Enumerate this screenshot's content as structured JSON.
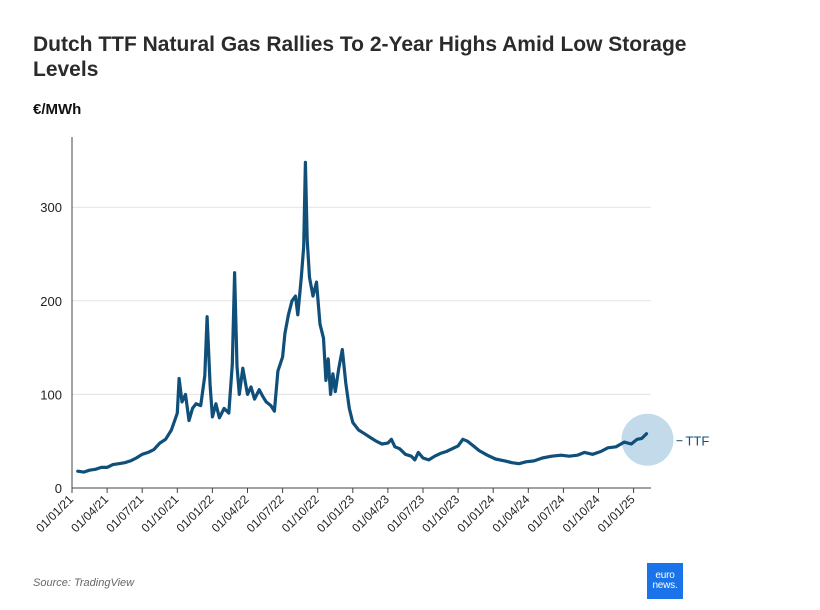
{
  "header": {
    "title": "Dutch TTF Natural Gas Rallies To 2-Year Highs Amid Low Storage Levels",
    "unit_label": "€/MWh"
  },
  "footer": {
    "source": "Source: TradingView",
    "logo_line1": "euro",
    "logo_line2": "news."
  },
  "colors": {
    "line": "#0f4f79",
    "highlight": "#b7d3e6",
    "grid": "#e3e3e3",
    "axis": "#444444",
    "logo": "#1a73e8"
  },
  "chart_data": {
    "type": "line",
    "title": "Dutch TTF Natural Gas Rallies To 2-Year Highs Amid Low Storage Levels",
    "ylabel": "€/MWh",
    "xlabel": "",
    "ylim": [
      0,
      370
    ],
    "yticks": [
      0,
      100,
      200,
      300
    ],
    "x_ticks": [
      {
        "label": "01/01/21",
        "t": 0
      },
      {
        "label": "01/04/21",
        "t": 3
      },
      {
        "label": "01/07/21",
        "t": 6
      },
      {
        "label": "01/10/21",
        "t": 9
      },
      {
        "label": "01/01/22",
        "t": 12
      },
      {
        "label": "01/04/22",
        "t": 15
      },
      {
        "label": "01/07/22",
        "t": 18
      },
      {
        "label": "01/10/22",
        "t": 21
      },
      {
        "label": "01/01/23",
        "t": 24
      },
      {
        "label": "01/04/23",
        "t": 27
      },
      {
        "label": "01/07/23",
        "t": 30
      },
      {
        "label": "01/10/23",
        "t": 33
      },
      {
        "label": "01/01/24",
        "t": 36
      },
      {
        "label": "01/04/24",
        "t": 39
      },
      {
        "label": "01/07/24",
        "t": 42
      },
      {
        "label": "01/10/24",
        "t": 45
      },
      {
        "label": "01/01/25",
        "t": 48
      }
    ],
    "series": [
      {
        "name": "TTF",
        "label": "TTF",
        "points": [
          [
            0.5,
            18
          ],
          [
            1,
            17
          ],
          [
            1.5,
            19
          ],
          [
            2,
            20
          ],
          [
            2.5,
            22
          ],
          [
            3,
            22
          ],
          [
            3.5,
            25
          ],
          [
            4,
            26
          ],
          [
            4.5,
            27
          ],
          [
            5,
            29
          ],
          [
            5.5,
            32
          ],
          [
            6,
            36
          ],
          [
            6.5,
            38
          ],
          [
            7,
            41
          ],
          [
            7.5,
            48
          ],
          [
            8,
            52
          ],
          [
            8.5,
            62
          ],
          [
            9,
            80
          ],
          [
            9.15,
            117
          ],
          [
            9.4,
            92
          ],
          [
            9.7,
            100
          ],
          [
            10,
            72
          ],
          [
            10.3,
            85
          ],
          [
            10.6,
            90
          ],
          [
            11,
            88
          ],
          [
            11.35,
            120
          ],
          [
            11.55,
            183
          ],
          [
            11.8,
            110
          ],
          [
            12,
            76
          ],
          [
            12.3,
            90
          ],
          [
            12.6,
            75
          ],
          [
            13,
            85
          ],
          [
            13.4,
            80
          ],
          [
            13.7,
            132
          ],
          [
            13.9,
            230
          ],
          [
            14.1,
            130
          ],
          [
            14.3,
            100
          ],
          [
            14.6,
            128
          ],
          [
            15,
            100
          ],
          [
            15.3,
            108
          ],
          [
            15.6,
            95
          ],
          [
            16,
            105
          ],
          [
            16.3,
            98
          ],
          [
            16.6,
            92
          ],
          [
            17,
            88
          ],
          [
            17.3,
            82
          ],
          [
            17.6,
            125
          ],
          [
            18,
            140
          ],
          [
            18.2,
            165
          ],
          [
            18.5,
            185
          ],
          [
            18.8,
            200
          ],
          [
            19.1,
            205
          ],
          [
            19.3,
            185
          ],
          [
            19.6,
            225
          ],
          [
            19.8,
            258
          ],
          [
            19.95,
            348
          ],
          [
            20.1,
            265
          ],
          [
            20.3,
            225
          ],
          [
            20.6,
            205
          ],
          [
            20.9,
            220
          ],
          [
            21.2,
            175
          ],
          [
            21.5,
            160
          ],
          [
            21.7,
            115
          ],
          [
            21.9,
            138
          ],
          [
            22.1,
            100
          ],
          [
            22.3,
            122
          ],
          [
            22.5,
            103
          ],
          [
            22.8,
            128
          ],
          [
            23.1,
            148
          ],
          [
            23.4,
            112
          ],
          [
            23.7,
            85
          ],
          [
            24,
            70
          ],
          [
            24.5,
            62
          ],
          [
            25,
            58
          ],
          [
            25.5,
            54
          ],
          [
            26,
            50
          ],
          [
            26.5,
            47
          ],
          [
            27,
            48
          ],
          [
            27.3,
            52
          ],
          [
            27.6,
            44
          ],
          [
            28,
            42
          ],
          [
            28.5,
            36
          ],
          [
            29,
            34
          ],
          [
            29.3,
            30
          ],
          [
            29.6,
            38
          ],
          [
            30,
            32
          ],
          [
            30.5,
            30
          ],
          [
            31,
            34
          ],
          [
            31.5,
            37
          ],
          [
            32,
            39
          ],
          [
            32.5,
            42
          ],
          [
            33,
            45
          ],
          [
            33.4,
            52
          ],
          [
            33.8,
            50
          ],
          [
            34.2,
            46
          ],
          [
            34.8,
            40
          ],
          [
            35.5,
            35
          ],
          [
            36.2,
            31
          ],
          [
            37,
            29
          ],
          [
            37.6,
            27
          ],
          [
            38.2,
            26
          ],
          [
            38.8,
            28
          ],
          [
            39.5,
            29
          ],
          [
            40.2,
            32
          ],
          [
            41,
            34
          ],
          [
            41.8,
            35
          ],
          [
            42.5,
            34
          ],
          [
            43.2,
            35
          ],
          [
            43.8,
            38
          ],
          [
            44.5,
            36
          ],
          [
            45.2,
            39
          ],
          [
            45.8,
            43
          ],
          [
            46.5,
            44
          ],
          [
            47.2,
            49
          ],
          [
            47.8,
            47
          ],
          [
            48.3,
            52
          ],
          [
            48.7,
            53
          ],
          [
            49.1,
            58
          ]
        ]
      }
    ],
    "legend": "end-of-line label",
    "grid": "horizontal"
  }
}
